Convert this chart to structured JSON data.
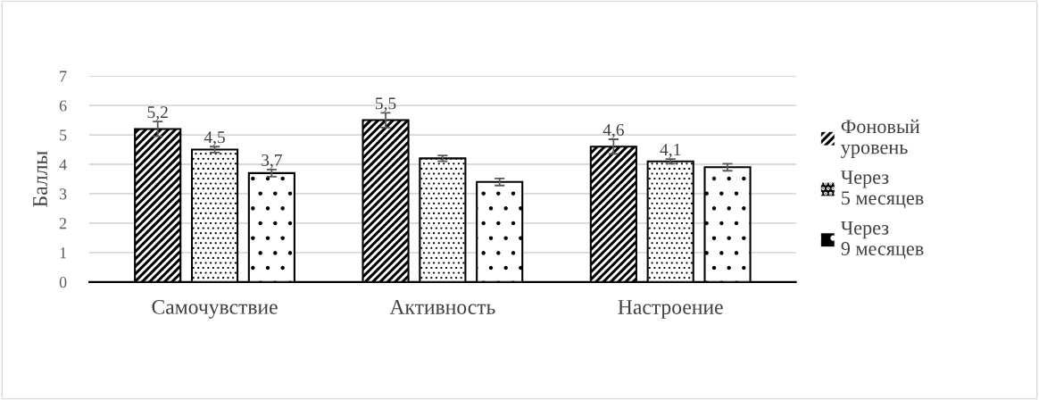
{
  "chart_data": {
    "type": "bar",
    "ylabel": "Баллы",
    "categories": [
      "Самочувствие",
      "Активность",
      "Настроение"
    ],
    "series": [
      {
        "name": "Фоновый уровень",
        "color": "#000000",
        "values": [
          5.2,
          5.5,
          4.6
        ],
        "errors": [
          0.25,
          0.25,
          0.25
        ],
        "value_labels": [
          "5,2",
          "5,5",
          "4,6"
        ]
      },
      {
        "name": "Через 5 месяцев",
        "color": "#000000",
        "values": [
          4.5,
          4.2,
          4.1
        ],
        "errors": [
          0.1,
          0.1,
          0.08
        ],
        "value_labels": [
          "4,5",
          null,
          "4,1"
        ]
      },
      {
        "name": "Через 9 месяцев",
        "color": "#000000",
        "values": [
          3.7,
          3.4,
          3.9
        ],
        "errors": [
          0.12,
          0.12,
          0.12
        ],
        "value_labels": [
          "3,7",
          null,
          null
        ]
      }
    ],
    "ylim": [
      0,
      7
    ],
    "yticks": [
      0,
      1,
      2,
      3,
      4,
      5,
      6,
      7
    ],
    "grid": "y",
    "legend": "right"
  }
}
